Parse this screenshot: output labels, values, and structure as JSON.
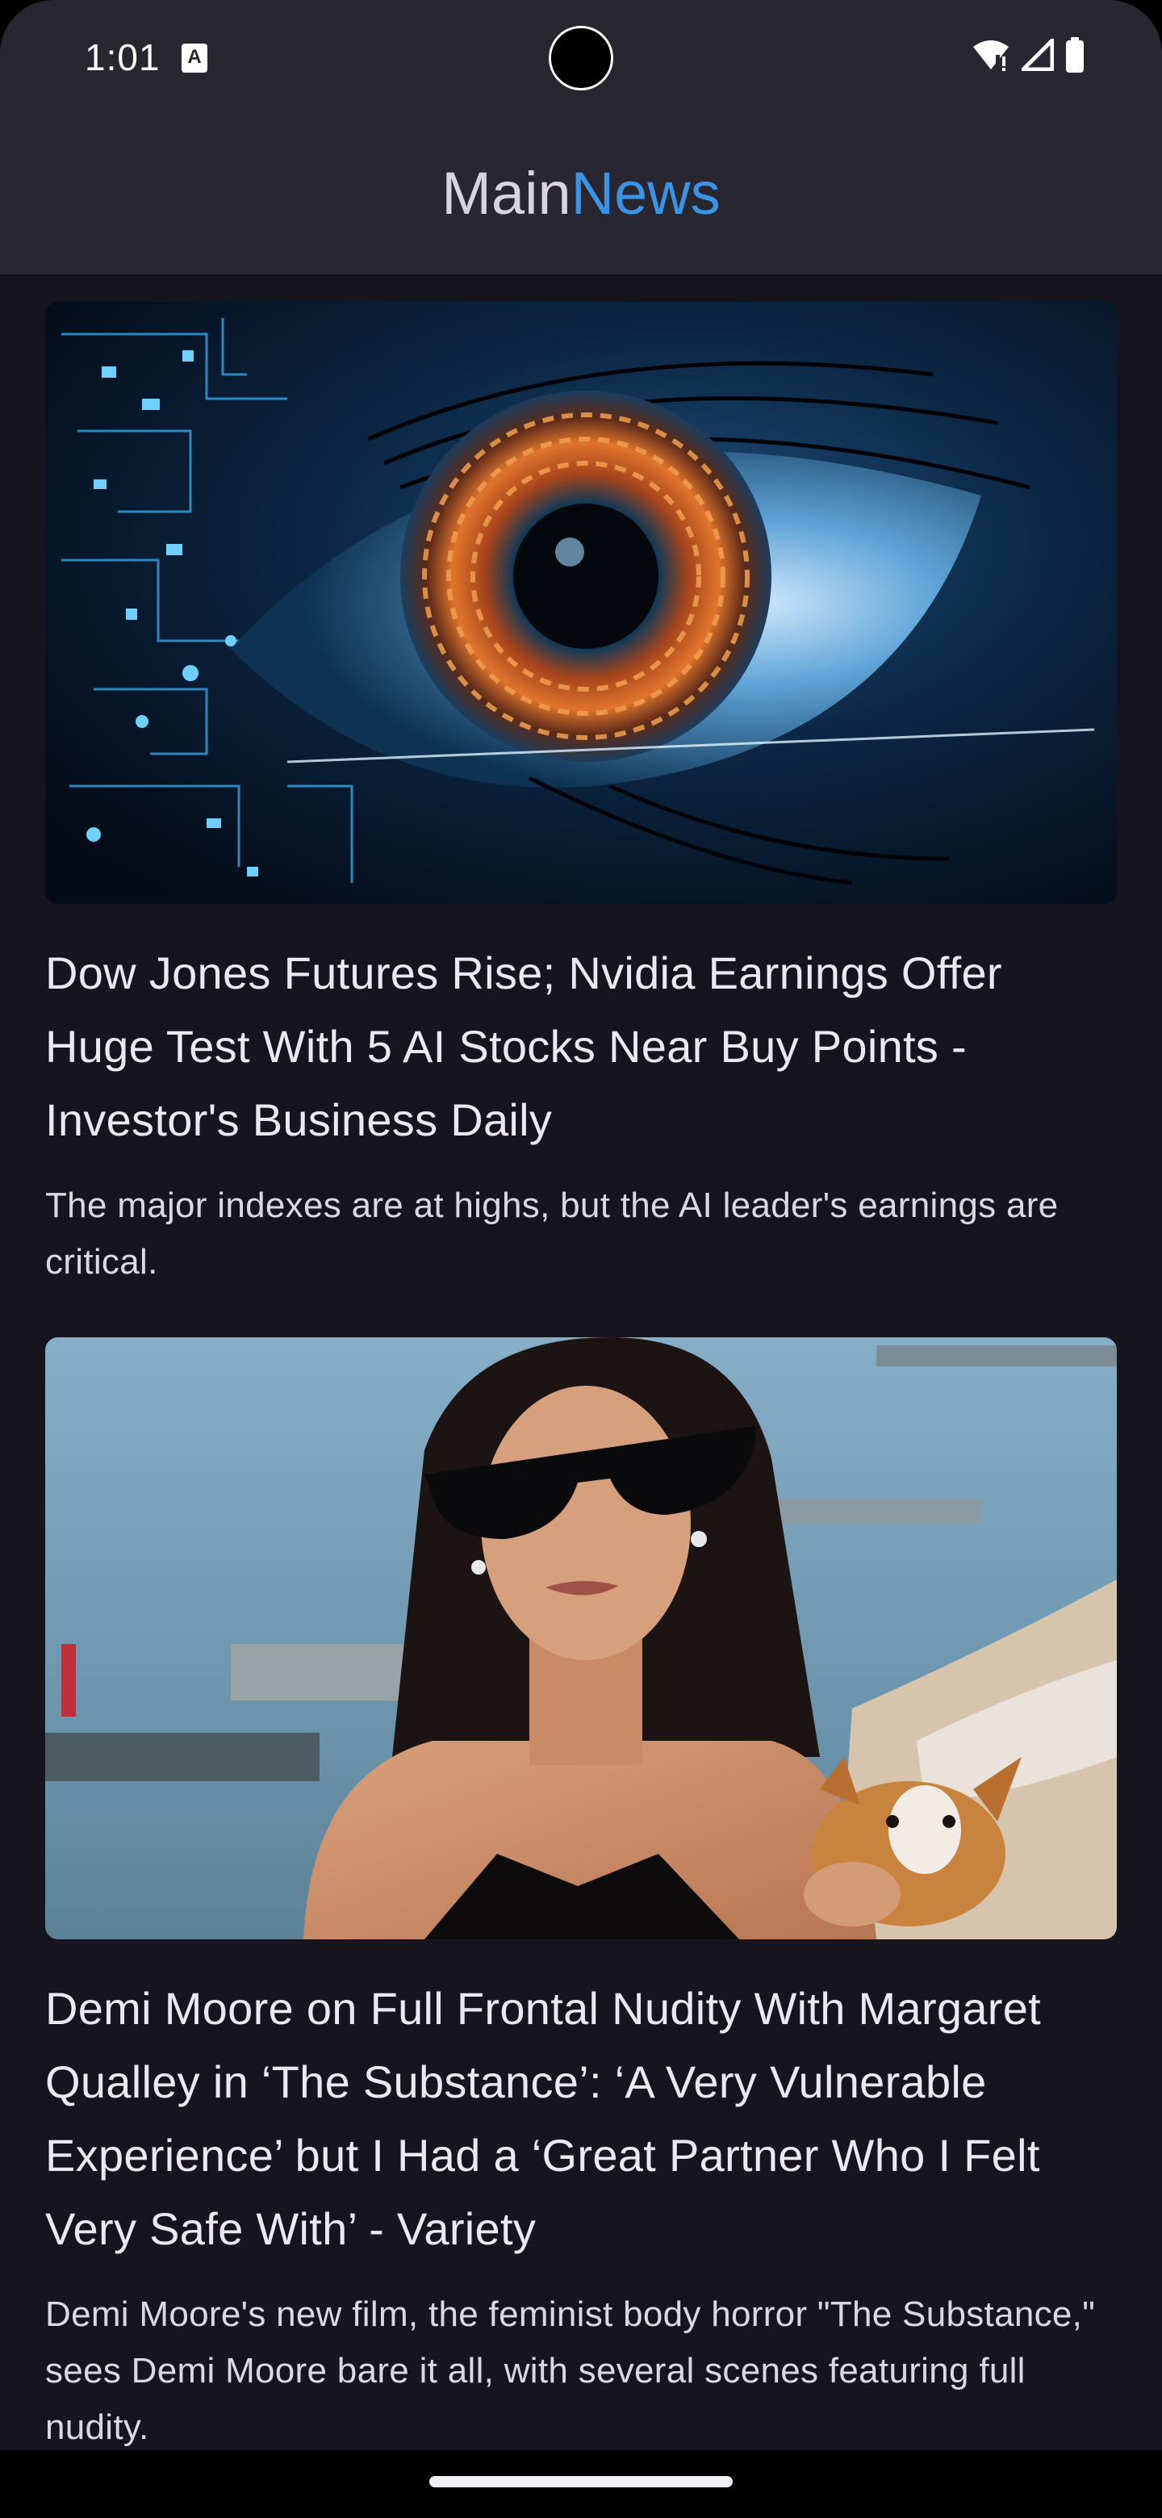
{
  "status_bar": {
    "time": "1:01",
    "notification_icon_letter": "A",
    "icons": [
      "wifi-icon",
      "signal-icon",
      "battery-icon"
    ]
  },
  "header": {
    "title_part1": "Main",
    "title_part2": "News",
    "title_color_part1": "#d8d4de",
    "title_color_part2": "#3b93e6"
  },
  "articles": [
    {
      "image": "cyber-eye-image",
      "headline": "Dow Jones Futures Rise; Nvidia Earnings Offer Huge Test With 5 AI Stocks Near Buy Points - Investor's Business Daily",
      "description": "The major indexes are at highs, but the AI leader's earnings are critical."
    },
    {
      "image": "celebrity-photo-image",
      "headline": "Demi Moore on Full Frontal Nudity With Margaret Qualley in ‘The Substance’: ‘A Very Vulnerable Experience’ but I Had a ‘Great Partner Who I Felt Very Safe With’ - Variety",
      "description": "Demi Moore's new film, the feminist body horror \"The Substance,\" sees Demi Moore bare it all, with several scenes featuring full nudity."
    }
  ],
  "colors": {
    "background": "#16141c",
    "top_bar": "#28262f",
    "accent": "#3b93e6"
  }
}
